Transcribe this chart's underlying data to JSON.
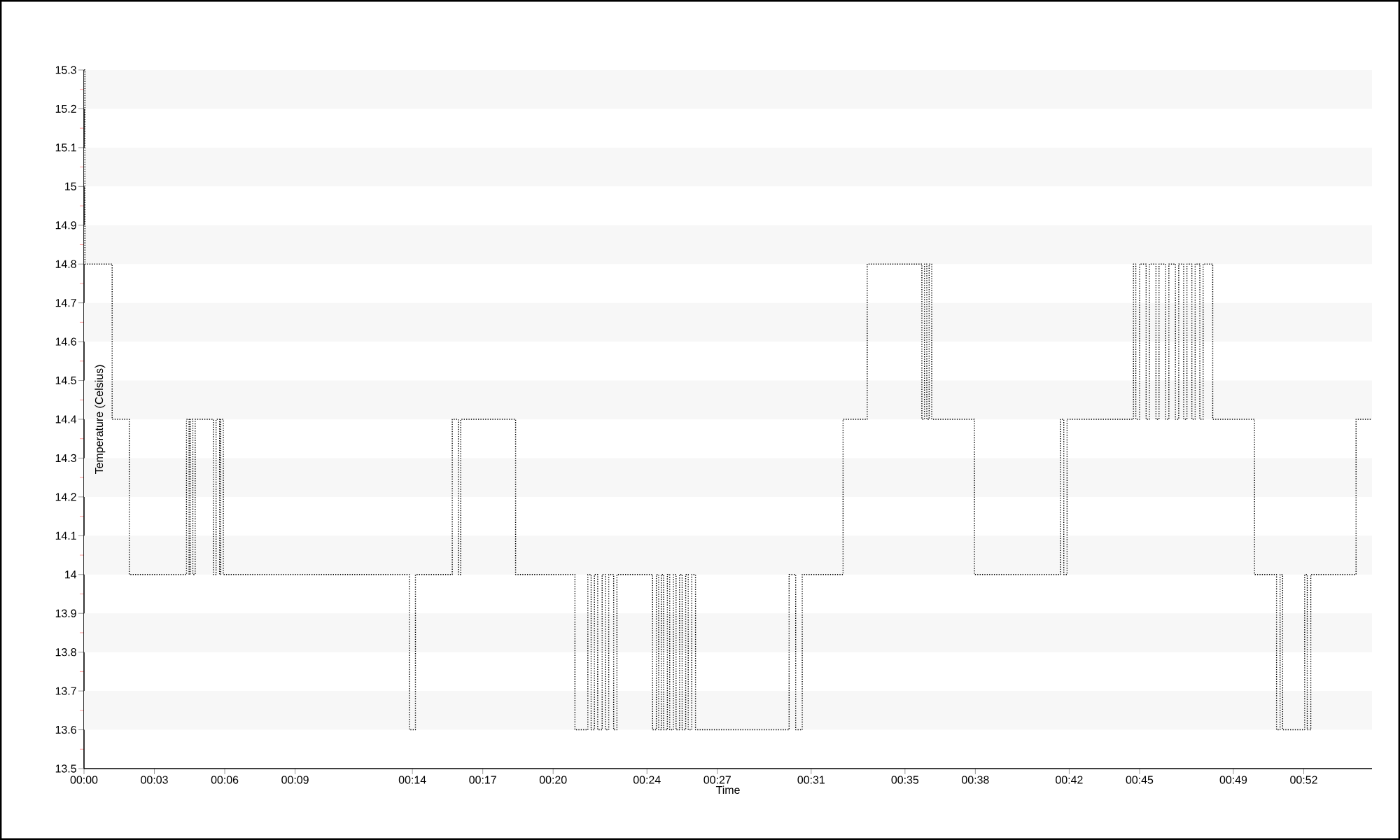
{
  "chart_data": {
    "type": "step",
    "xlabel": "Time",
    "ylabel": "Temperature (Celsius)",
    "x": [
      0,
      0.04,
      1.2,
      1.93,
      4.37,
      4.48,
      4.53,
      4.64,
      4.74,
      5.52,
      5.63,
      5.78,
      5.83,
      5.94,
      13.87,
      14.13,
      15.7,
      15.96,
      16.06,
      18.4,
      20.93,
      21.48,
      21.62,
      21.76,
      21.9,
      22.09,
      22.23,
      22.37,
      22.58,
      22.72,
      24.24,
      24.4,
      24.5,
      24.61,
      24.71,
      24.87,
      24.97,
      25.13,
      25.24,
      25.39,
      25.5,
      25.65,
      25.76,
      25.91,
      26.07,
      30.06,
      30.34,
      30.62,
      32.36,
      33.39,
      35.72,
      35.83,
      35.93,
      36.03,
      36.14,
      37.96,
      41.63,
      41.77,
      41.91,
      44.74,
      44.84,
      45.0,
      45.28,
      45.42,
      45.7,
      45.83,
      46.11,
      46.25,
      46.53,
      46.67,
      46.88,
      47.02,
      47.23,
      47.37,
      47.57,
      47.71,
      48.12,
      49.9,
      50.84,
      50.99,
      51.1,
      52.04,
      52.15,
      52.3,
      54.23,
      54.91
    ],
    "values": [
      15.3,
      14.8,
      14.4,
      14.0,
      14.4,
      14.0,
      14.4,
      14.0,
      14.4,
      14.0,
      14.4,
      14.0,
      14.4,
      14.0,
      13.6,
      14.0,
      14.4,
      14.0,
      14.4,
      14.0,
      13.6,
      14.0,
      13.6,
      14.0,
      13.6,
      14.0,
      13.6,
      14.0,
      13.6,
      14.0,
      13.6,
      14.0,
      13.6,
      14.0,
      13.6,
      14.0,
      13.6,
      14.0,
      13.6,
      14.0,
      13.6,
      14.0,
      13.6,
      14.0,
      13.6,
      14.0,
      13.6,
      14.0,
      14.4,
      14.8,
      14.4,
      14.8,
      14.4,
      14.8,
      14.4,
      14.0,
      14.4,
      14.0,
      14.4,
      14.8,
      14.4,
      14.8,
      14.4,
      14.8,
      14.4,
      14.8,
      14.4,
      14.8,
      14.4,
      14.8,
      14.4,
      14.8,
      14.4,
      14.8,
      14.4,
      14.8,
      14.4,
      14.0,
      13.6,
      14.0,
      13.6,
      14.0,
      13.6,
      14.0,
      14.4,
      14.4
    ],
    "color": "#000000",
    "line_style": "dotted",
    "marker": "none",
    "bands": [
      {
        "axis": "y",
        "from": 13.6,
        "to": 13.7,
        "color": "#f7f7f7"
      },
      {
        "axis": "y",
        "from": 13.8,
        "to": 13.9,
        "color": "#f7f7f7"
      },
      {
        "axis": "y",
        "from": 14.0,
        "to": 14.1,
        "color": "#f7f7f7"
      },
      {
        "axis": "y",
        "from": 14.2,
        "to": 14.3,
        "color": "#f7f7f7"
      },
      {
        "axis": "y",
        "from": 14.4,
        "to": 14.5,
        "color": "#f7f7f7"
      },
      {
        "axis": "y",
        "from": 14.6,
        "to": 14.7,
        "color": "#f7f7f7"
      },
      {
        "axis": "y",
        "from": 14.8,
        "to": 14.9,
        "color": "#f7f7f7"
      },
      {
        "axis": "y",
        "from": 15.0,
        "to": 15.1,
        "color": "#f7f7f7"
      },
      {
        "axis": "y",
        "from": 15.2,
        "to": 15.3,
        "color": "#f7f7f7"
      }
    ],
    "xlim": [
      0,
      54.91
    ],
    "xticks": [
      {
        "value": 0,
        "label": "00:00"
      },
      {
        "value": 3,
        "label": "00:03"
      },
      {
        "value": 6,
        "label": "00:06"
      },
      {
        "value": 9,
        "label": "00:09"
      },
      {
        "value": 14,
        "label": "00:14"
      },
      {
        "value": 17,
        "label": "00:17"
      },
      {
        "value": 20,
        "label": "00:20"
      },
      {
        "value": 24,
        "label": "00:24"
      },
      {
        "value": 27,
        "label": "00:27"
      },
      {
        "value": 31,
        "label": "00:31"
      },
      {
        "value": 35,
        "label": "00:35"
      },
      {
        "value": 38,
        "label": "00:38"
      },
      {
        "value": 42,
        "label": "00:42"
      },
      {
        "value": 45,
        "label": "00:45"
      },
      {
        "value": 49,
        "label": "00:49"
      },
      {
        "value": 52,
        "label": "00:52"
      }
    ],
    "ylim": [
      13.5,
      15.3
    ],
    "yticks": [
      13.5,
      13.6,
      13.7,
      13.8,
      13.9,
      14,
      14.1,
      14.2,
      14.3,
      14.4,
      14.5,
      14.6,
      14.7,
      14.8,
      14.9,
      15,
      15.1,
      15.2,
      15.3
    ]
  }
}
